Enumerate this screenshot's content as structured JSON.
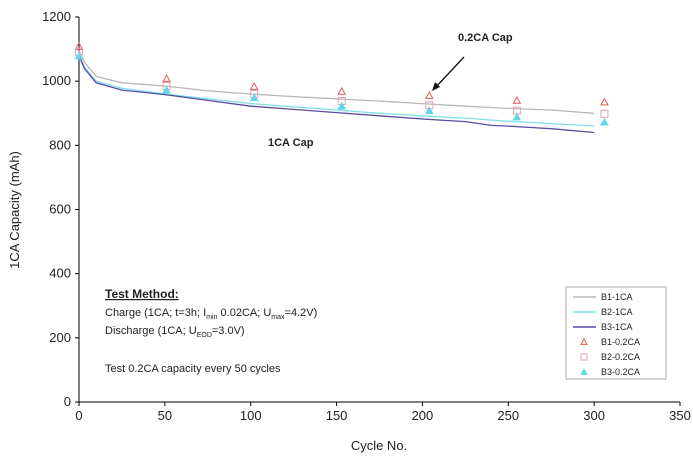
{
  "chart_data": {
    "type": "line",
    "title": "",
    "xlabel": "Cycle No.",
    "ylabel": "1CA Capacity (mAh)",
    "xlim": [
      0,
      350
    ],
    "ylim": [
      0,
      1200
    ],
    "xticks": [
      0,
      50,
      100,
      150,
      200,
      250,
      300,
      350
    ],
    "yticks": [
      0,
      200,
      400,
      600,
      800,
      1000,
      1200
    ],
    "grid": false,
    "legend_position": "bottom-right",
    "series": [
      {
        "name": "B1-1CA",
        "kind": "line",
        "color": "#b8b8b8",
        "x": [
          0,
          3,
          10,
          25,
          50,
          75,
          100,
          125,
          150,
          175,
          200,
          225,
          250,
          275,
          300
        ],
        "y": [
          1095,
          1060,
          1015,
          995,
          985,
          970,
          960,
          952,
          945,
          938,
          930,
          922,
          915,
          910,
          900
        ]
      },
      {
        "name": "B2-1CA",
        "kind": "line",
        "color": "#7fe0ee",
        "x": [
          0,
          3,
          10,
          25,
          50,
          75,
          100,
          125,
          150,
          175,
          200,
          225,
          250,
          275,
          300
        ],
        "y": [
          1085,
          1045,
          1000,
          978,
          960,
          945,
          930,
          920,
          910,
          900,
          892,
          885,
          875,
          868,
          860
        ]
      },
      {
        "name": "B3-1CA",
        "kind": "line",
        "color": "#5a4aa0",
        "x": [
          0,
          3,
          10,
          25,
          50,
          75,
          100,
          125,
          150,
          175,
          200,
          225,
          240,
          250,
          275,
          300
        ],
        "y": [
          1080,
          1040,
          995,
          972,
          958,
          940,
          922,
          912,
          902,
          892,
          882,
          874,
          862,
          860,
          852,
          840
        ]
      },
      {
        "name": "B1-0.2CA",
        "kind": "marker",
        "marker": "triangle-open",
        "color": "#e05a5a",
        "x": [
          0,
          51,
          102,
          153,
          204,
          255,
          306
        ],
        "y": [
          1108,
          1008,
          983,
          968,
          955,
          940,
          935
        ]
      },
      {
        "name": "B2-0.2CA",
        "kind": "marker",
        "marker": "square-open",
        "color": "#e8a0b8",
        "x": [
          0,
          51,
          102,
          153,
          204,
          255,
          306
        ],
        "y": [
          1092,
          985,
          960,
          938,
          925,
          908,
          898
        ]
      },
      {
        "name": "B3-0.2CA",
        "kind": "marker",
        "marker": "triangle-filled",
        "color": "#60d8e8",
        "x": [
          0,
          51,
          102,
          153,
          204,
          255,
          306
        ],
        "y": [
          1078,
          972,
          948,
          922,
          908,
          888,
          872
        ]
      }
    ],
    "annotations": [
      {
        "text": "0.2CA Cap"
      },
      {
        "text": "1CA Cap"
      }
    ],
    "test_method": {
      "heading": "Test Method:",
      "charge": {
        "pre": "Charge (1CA; t=3h; I",
        "sub1": "min",
        "mid": " 0.02CA; U",
        "sub2": "max",
        "post": "=4.2V)"
      },
      "discharge": {
        "pre": "Discharge (1CA; U",
        "sub": "EOD",
        "post": "=3.0V)"
      },
      "note": "Test 0.2CA capacity every 50 cycles"
    }
  }
}
